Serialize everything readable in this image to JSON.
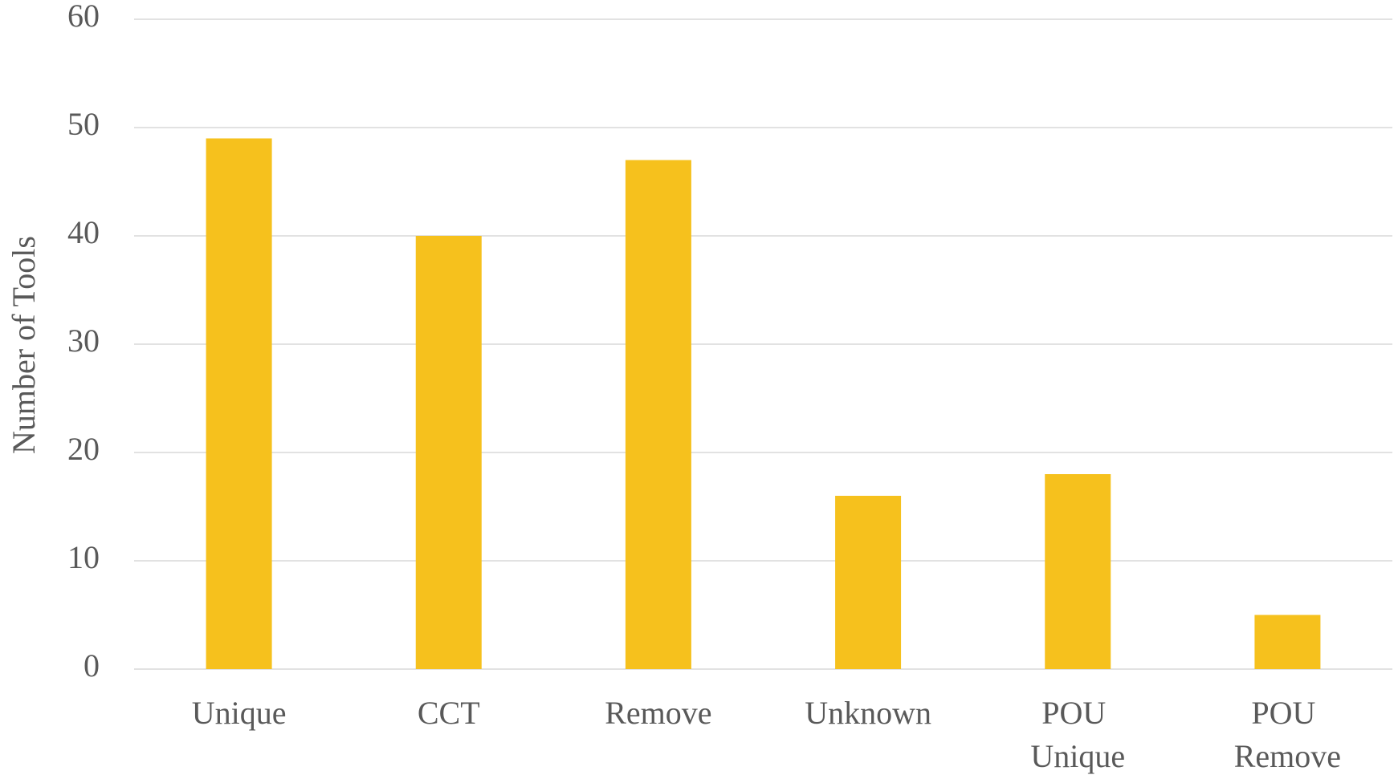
{
  "chart_data": {
    "type": "bar",
    "ylabel": "Number of Tools",
    "categories": [
      "Unique",
      "CCT",
      "Remove",
      "Unknown",
      "POU Unique",
      "POU Remove"
    ],
    "values": [
      49,
      40,
      47,
      16,
      18,
      5
    ],
    "color": "#f6c11d",
    "ylim": [
      0,
      60
    ],
    "yticks": [
      0,
      10,
      20,
      30,
      40,
      50,
      60
    ],
    "grid": true
  }
}
